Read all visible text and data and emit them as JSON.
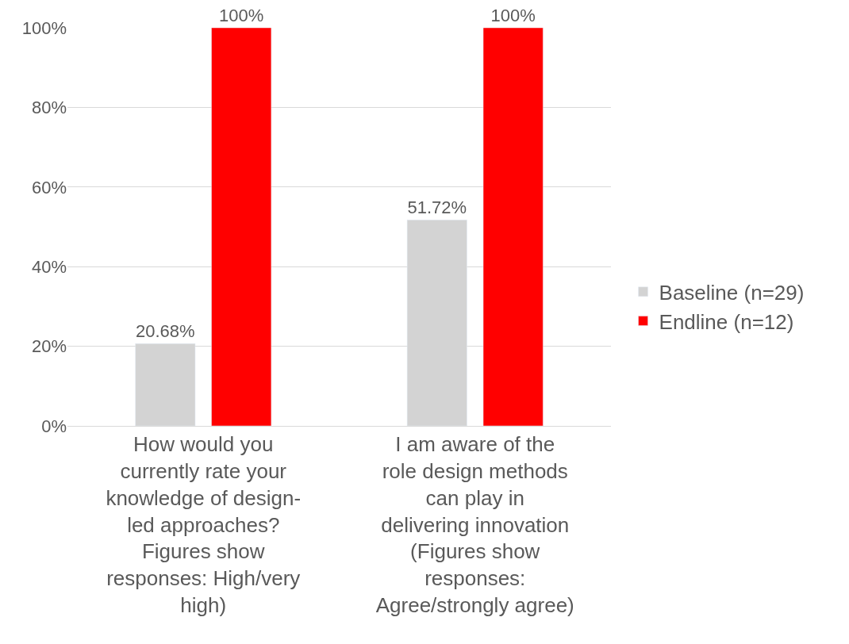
{
  "chart_data": {
    "type": "bar",
    "categories": [
      "How would you currently rate your knowledge of design-led approaches? Figures show responses: High/very high)",
      "I am aware of the role design methods can play in delivering innovation (Figures show responses: Agree/strongly agree)"
    ],
    "series": [
      {
        "name": "Baseline (n=29)",
        "color": "#d3d3d3",
        "values": [
          20.68,
          51.72
        ],
        "value_labels": [
          "20.68%",
          "51.72%"
        ]
      },
      {
        "name": "Endline (n=12)",
        "color": "#ff0000",
        "values": [
          100,
          100
        ],
        "value_labels": [
          "100%",
          "100%"
        ]
      }
    ],
    "ylim": [
      0,
      100
    ],
    "yticks": [
      {
        "value": 0,
        "label": "0%"
      },
      {
        "value": 20,
        "label": "20%"
      },
      {
        "value": 40,
        "label": "40%"
      },
      {
        "value": 60,
        "label": "60%"
      },
      {
        "value": 80,
        "label": "80%"
      },
      {
        "value": 100,
        "label": "100%"
      }
    ],
    "grid": "y",
    "legend": "right"
  }
}
